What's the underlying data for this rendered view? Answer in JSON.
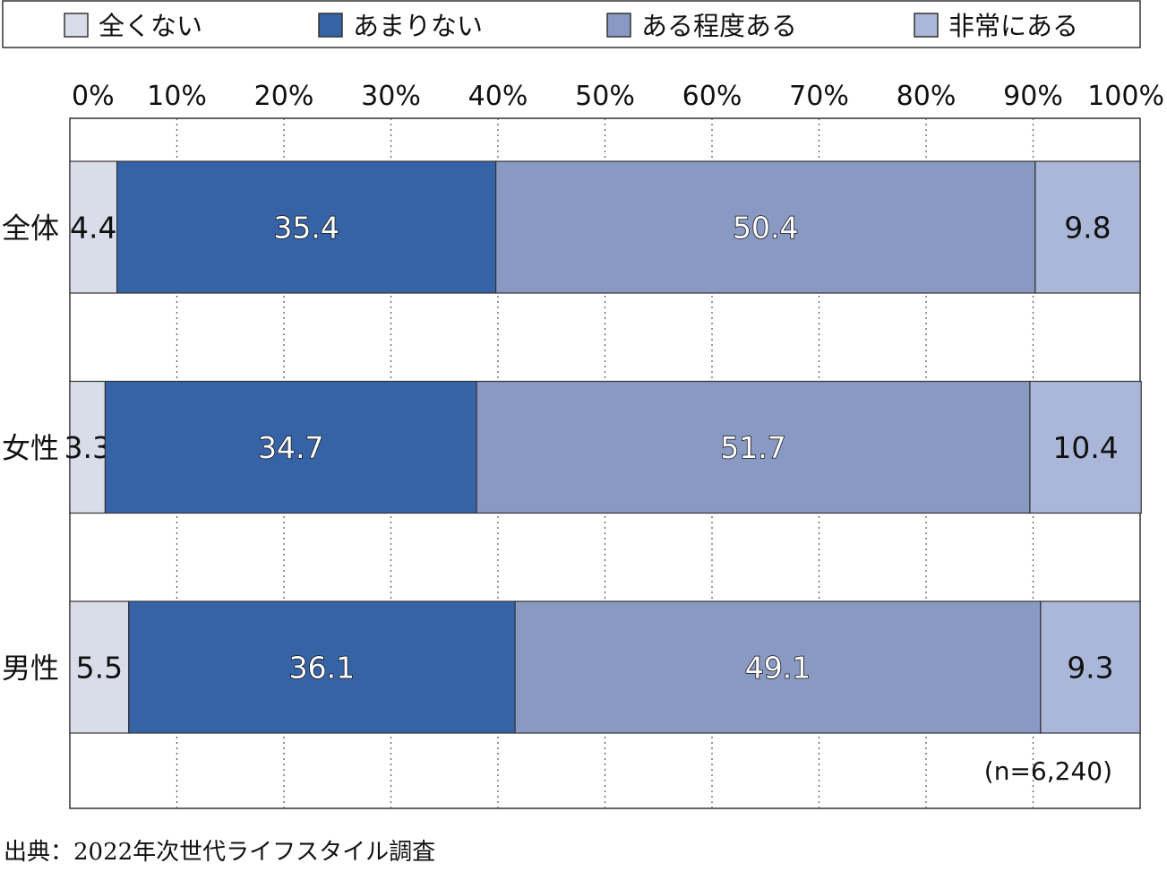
{
  "chart_data": {
    "type": "bar",
    "orientation": "horizontal",
    "stacked": true,
    "percent_scale": true,
    "legend": [
      {
        "label": "全くない",
        "color": "#d9dde9"
      },
      {
        "label": "あまりない",
        "color": "#3563a6"
      },
      {
        "label": "ある程度ある",
        "color": "#8899c3"
      },
      {
        "label": "非常にある",
        "color": "#aab7d8"
      }
    ],
    "legend_position": "top",
    "x_ticks": [
      "0%",
      "10%",
      "20%",
      "30%",
      "40%",
      "50%",
      "60%",
      "70%",
      "80%",
      "90%",
      "100%"
    ],
    "xlim": [
      0,
      100
    ],
    "categories": [
      "全体",
      "女性",
      "男性"
    ],
    "series": [
      {
        "name": "全くない",
        "values": [
          4.4,
          3.3,
          5.5
        ],
        "labels": [
          "4.4",
          "3.3",
          "5.5"
        ]
      },
      {
        "name": "あまりない",
        "values": [
          35.4,
          34.7,
          36.1
        ],
        "labels": [
          "35.4",
          "34.7",
          "36.1"
        ]
      },
      {
        "name": "ある程度ある",
        "values": [
          50.4,
          51.7,
          49.1
        ],
        "labels": [
          "50.4",
          "51.7",
          "49.1"
        ]
      },
      {
        "name": "非常にある",
        "values": [
          9.8,
          10.4,
          9.3
        ],
        "labels": [
          "9.8",
          "10.4",
          "9.3"
        ]
      }
    ],
    "grid": "vertical dotted",
    "n_label": "(n=6,240)"
  },
  "source_text": "出典：2022年次世代ライフスタイル調査"
}
